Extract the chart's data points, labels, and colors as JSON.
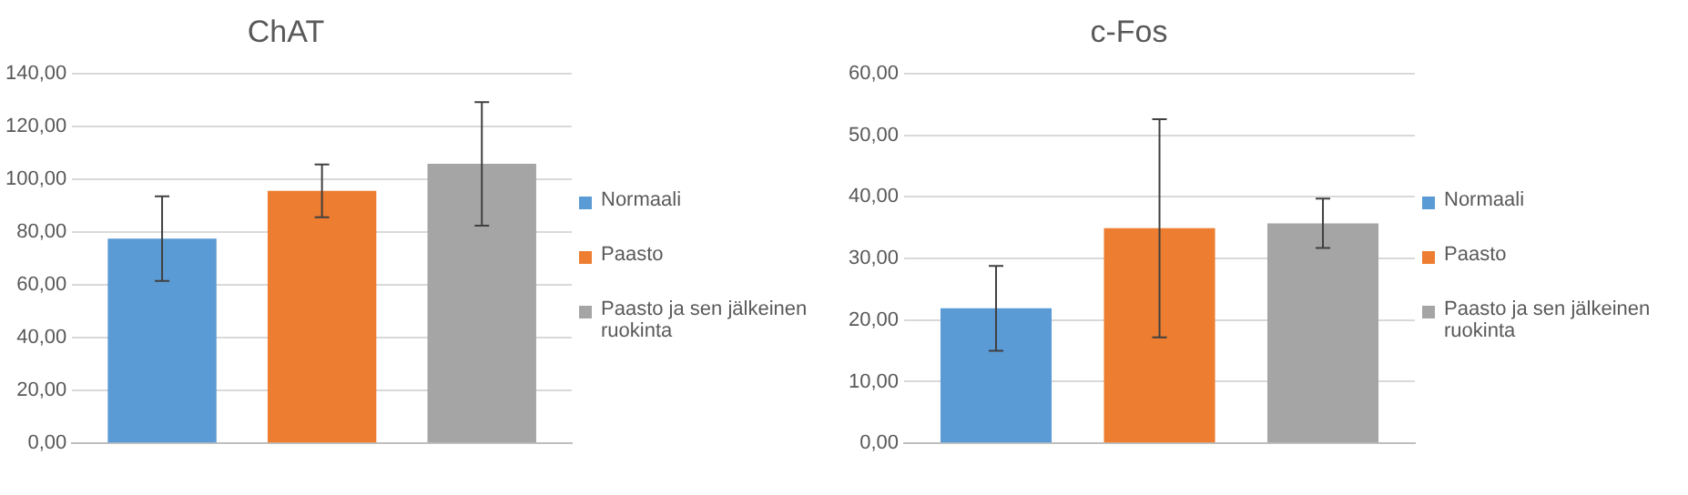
{
  "chart_data": [
    {
      "type": "bar",
      "title": "ChAT",
      "categories": [
        null
      ],
      "legend": "right",
      "grid": "y",
      "ylim": [
        0,
        140
      ],
      "yticks": [
        {
          "value": 0,
          "label": "0,00"
        },
        {
          "value": 20,
          "label": "20,00"
        },
        {
          "value": 40,
          "label": "40,00"
        },
        {
          "value": 60,
          "label": "60,00"
        },
        {
          "value": 80,
          "label": "80,00"
        },
        {
          "value": 100,
          "label": "100,00"
        },
        {
          "value": 120,
          "label": "120,00"
        },
        {
          "value": 140,
          "label": "140,00"
        }
      ],
      "series": [
        {
          "name": "Normaali",
          "color": "#5b9bd5",
          "values": [
            77.5
          ],
          "errors": [
            16
          ]
        },
        {
          "name": "Paasto",
          "color": "#ed7d31",
          "values": [
            95.6
          ],
          "errors": [
            10
          ]
        },
        {
          "name": "Paasto ja sen jälkeinen ruokinta",
          "color": "#a5a5a5",
          "values": [
            105.8
          ],
          "errors": [
            23.4
          ]
        }
      ]
    },
    {
      "type": "bar",
      "title": "c-Fos",
      "categories": [
        null
      ],
      "legend": "right",
      "grid": "y",
      "ylim": [
        0,
        60
      ],
      "yticks": [
        {
          "value": 0,
          "label": "0,00"
        },
        {
          "value": 10,
          "label": "10,00"
        },
        {
          "value": 20,
          "label": "20,00"
        },
        {
          "value": 30,
          "label": "30,00"
        },
        {
          "value": 40,
          "label": "40,00"
        },
        {
          "value": 50,
          "label": "50,00"
        },
        {
          "value": 60,
          "label": "60,00"
        }
      ],
      "series": [
        {
          "name": "Normaali",
          "color": "#5b9bd5",
          "values": [
            21.9
          ],
          "errors": [
            6.9
          ]
        },
        {
          "name": "Paasto",
          "color": "#ed7d31",
          "values": [
            34.9
          ],
          "errors": [
            17.7
          ]
        },
        {
          "name": "Paasto ja sen jälkeinen ruokinta",
          "color": "#a5a5a5",
          "values": [
            35.7
          ],
          "errors": [
            4
          ]
        }
      ]
    }
  ]
}
